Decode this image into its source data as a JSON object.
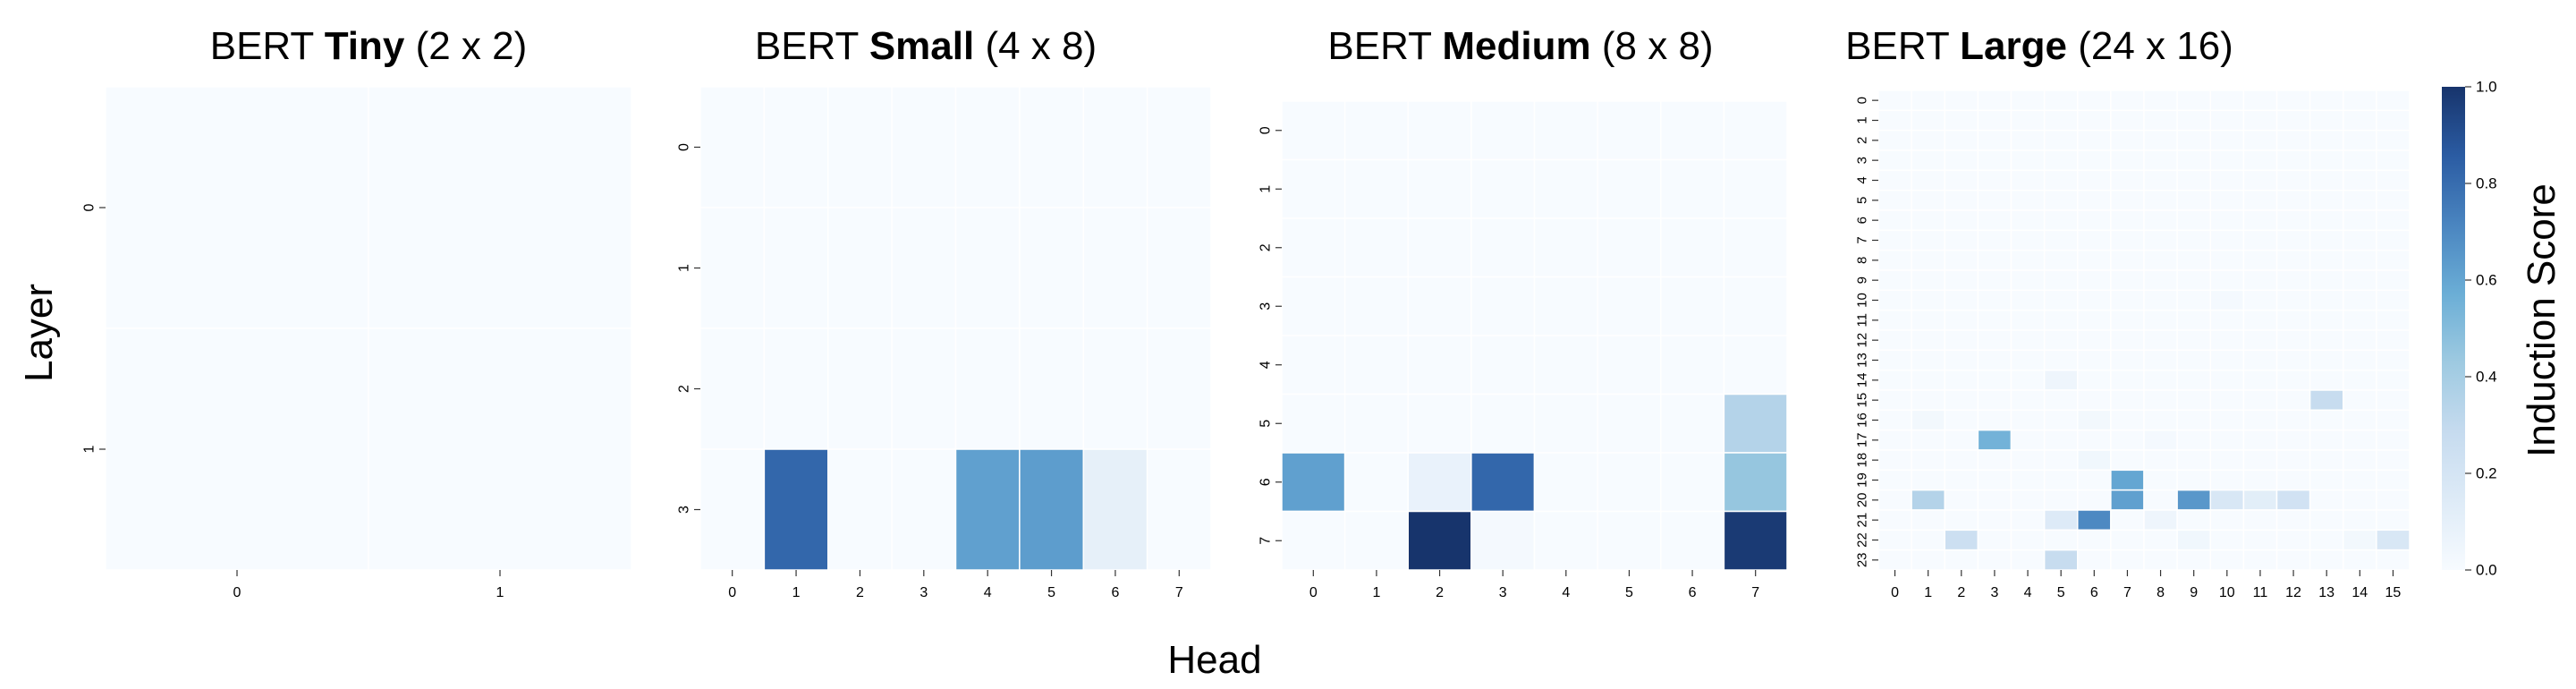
{
  "figure": {
    "ylabel": "Layer",
    "xlabel": "Head",
    "colorbar": {
      "label": "Induction Score",
      "ticks": [
        "0.0",
        "0.2",
        "0.4",
        "0.6",
        "0.8",
        "1.0"
      ],
      "range": [
        0,
        1
      ],
      "colormap": [
        "#f7fbff",
        "#deebf7",
        "#c6dbef",
        "#9ecae1",
        "#6baed6",
        "#4a85c0",
        "#2b5ca3",
        "#17346c"
      ]
    }
  },
  "chart_data": [
    {
      "type": "heatmap",
      "title_prefix": "BERT ",
      "title_bold": "Tiny",
      "title_suffix": " (2 x 2)",
      "ylabel": "Layer",
      "xlabel": "Head",
      "rows": [
        "0",
        "1"
      ],
      "cols": [
        "0",
        "1"
      ],
      "values": [
        [
          0.0,
          0.0
        ],
        [
          0.0,
          0.0
        ]
      ]
    },
    {
      "type": "heatmap",
      "title_prefix": "BERT ",
      "title_bold": "Small",
      "title_suffix": " (4 x 8)",
      "ylabel": "Layer",
      "xlabel": "Head",
      "rows": [
        "0",
        "1",
        "2",
        "3"
      ],
      "cols": [
        "0",
        "1",
        "2",
        "3",
        "4",
        "5",
        "6",
        "7"
      ],
      "values": [
        [
          0,
          0,
          0,
          0,
          0,
          0,
          0,
          0
        ],
        [
          0,
          0,
          0,
          0,
          0,
          0,
          0,
          0
        ],
        [
          0,
          0,
          0,
          0,
          0,
          0,
          0,
          0
        ],
        [
          0,
          0.82,
          0,
          0,
          0.62,
          0.63,
          0.1,
          0
        ]
      ]
    },
    {
      "type": "heatmap",
      "title_prefix": "BERT ",
      "title_bold": "Medium",
      "title_suffix": " (8 x 8)",
      "ylabel": "Layer",
      "xlabel": "Head",
      "rows": [
        "0",
        "1",
        "2",
        "3",
        "4",
        "5",
        "6",
        "7"
      ],
      "cols": [
        "0",
        "1",
        "2",
        "3",
        "4",
        "5",
        "6",
        "7"
      ],
      "values": [
        [
          0,
          0,
          0,
          0,
          0,
          0,
          0,
          0
        ],
        [
          0,
          0,
          0,
          0,
          0,
          0,
          0,
          0
        ],
        [
          0,
          0,
          0,
          0,
          0,
          0,
          0,
          0
        ],
        [
          0,
          0,
          0,
          0,
          0,
          0,
          0,
          0
        ],
        [
          0,
          0,
          0,
          0,
          0,
          0,
          0,
          0
        ],
        [
          0,
          0,
          0,
          0,
          0,
          0,
          0,
          0.35
        ],
        [
          0.62,
          0,
          0.08,
          0.82,
          0,
          0,
          0,
          0.45
        ],
        [
          0,
          0,
          1.0,
          0.02,
          0,
          0,
          0,
          0.98
        ]
      ]
    },
    {
      "type": "heatmap",
      "title_prefix": "BERT ",
      "title_bold": "Large",
      "title_suffix": " (24 x 16)",
      "ylabel": "Layer",
      "xlabel": "Head",
      "rows": [
        "0",
        "1",
        "2",
        "3",
        "4",
        "5",
        "6",
        "7",
        "8",
        "9",
        "10",
        "11",
        "12",
        "13",
        "14",
        "15",
        "16",
        "17",
        "18",
        "19",
        "20",
        "21",
        "22",
        "23"
      ],
      "cols": [
        "0",
        "1",
        "2",
        "3",
        "4",
        "5",
        "6",
        "7",
        "8",
        "9",
        "10",
        "11",
        "12",
        "13",
        "14",
        "15"
      ],
      "values": [
        [
          0,
          0,
          0,
          0,
          0,
          0,
          0,
          0,
          0,
          0,
          0,
          0,
          0,
          0,
          0,
          0
        ],
        [
          0,
          0,
          0,
          0,
          0,
          0,
          0,
          0,
          0,
          0,
          0,
          0,
          0,
          0,
          0,
          0
        ],
        [
          0,
          0,
          0,
          0,
          0,
          0,
          0,
          0,
          0,
          0,
          0,
          0,
          0,
          0,
          0,
          0
        ],
        [
          0,
          0,
          0,
          0,
          0,
          0,
          0,
          0,
          0,
          0,
          0,
          0,
          0,
          0,
          0,
          0
        ],
        [
          0,
          0,
          0,
          0,
          0,
          0,
          0,
          0,
          0,
          0,
          0,
          0,
          0,
          0,
          0,
          0
        ],
        [
          0,
          0,
          0,
          0,
          0,
          0,
          0,
          0,
          0,
          0,
          0,
          0,
          0,
          0,
          0,
          0
        ],
        [
          0,
          0,
          0,
          0,
          0,
          0,
          0,
          0,
          0,
          0,
          0,
          0,
          0,
          0,
          0,
          0
        ],
        [
          0,
          0,
          0,
          0,
          0,
          0,
          0,
          0,
          0,
          0,
          0,
          0,
          0,
          0,
          0,
          0
        ],
        [
          0,
          0,
          0,
          0,
          0,
          0,
          0,
          0,
          0,
          0,
          0,
          0,
          0,
          0,
          0,
          0
        ],
        [
          0,
          0,
          0,
          0,
          0,
          0,
          0,
          0,
          0,
          0,
          0,
          0,
          0,
          0,
          0,
          0
        ],
        [
          0,
          0,
          0,
          0,
          0,
          0,
          0,
          0,
          0,
          0,
          0.02,
          0,
          0,
          0,
          0,
          0
        ],
        [
          0,
          0,
          0,
          0,
          0,
          0,
          0,
          0,
          0,
          0,
          0,
          0,
          0,
          0,
          0,
          0
        ],
        [
          0,
          0,
          0,
          0,
          0,
          0,
          0,
          0,
          0,
          0,
          0,
          0,
          0,
          0,
          0,
          0
        ],
        [
          0,
          0,
          0,
          0,
          0,
          0,
          0,
          0,
          0,
          0,
          0,
          0,
          0,
          0,
          0,
          0
        ],
        [
          0,
          0,
          0,
          0,
          0,
          0.05,
          0,
          0,
          0,
          0,
          0,
          0,
          0,
          0,
          0,
          0
        ],
        [
          0,
          0,
          0,
          0,
          0,
          0,
          0,
          0,
          0,
          0,
          0,
          0,
          0,
          0.28,
          0,
          0
        ],
        [
          0,
          0.03,
          0,
          0,
          0,
          0,
          0.03,
          0,
          0,
          0,
          0,
          0,
          0,
          0,
          0,
          0
        ],
        [
          0,
          0,
          0,
          0.55,
          0,
          0,
          0,
          0,
          0.02,
          0,
          0,
          0,
          0,
          0,
          0,
          0
        ],
        [
          0,
          0,
          0,
          0,
          0,
          0,
          0.04,
          0,
          0,
          0,
          0,
          0,
          0,
          0,
          0,
          0
        ],
        [
          0,
          0,
          0,
          0,
          0,
          0,
          0,
          0.6,
          0,
          0,
          0,
          0,
          0,
          0,
          0,
          0
        ],
        [
          0,
          0.35,
          0,
          0,
          0,
          0,
          0,
          0.62,
          0,
          0.65,
          0.18,
          0.12,
          0.22,
          0,
          0,
          0
        ],
        [
          0,
          0,
          0,
          0,
          0,
          0.15,
          0.7,
          0,
          0.05,
          0,
          0,
          0,
          0,
          0,
          0,
          0
        ],
        [
          0,
          0,
          0.25,
          0,
          0,
          0,
          0,
          0,
          0,
          0.04,
          0,
          0,
          0,
          0,
          0.03,
          0.18
        ],
        [
          0,
          0,
          0,
          0,
          0,
          0.28,
          0,
          0,
          0,
          0,
          0,
          0,
          0,
          0,
          0,
          0
        ]
      ]
    }
  ]
}
